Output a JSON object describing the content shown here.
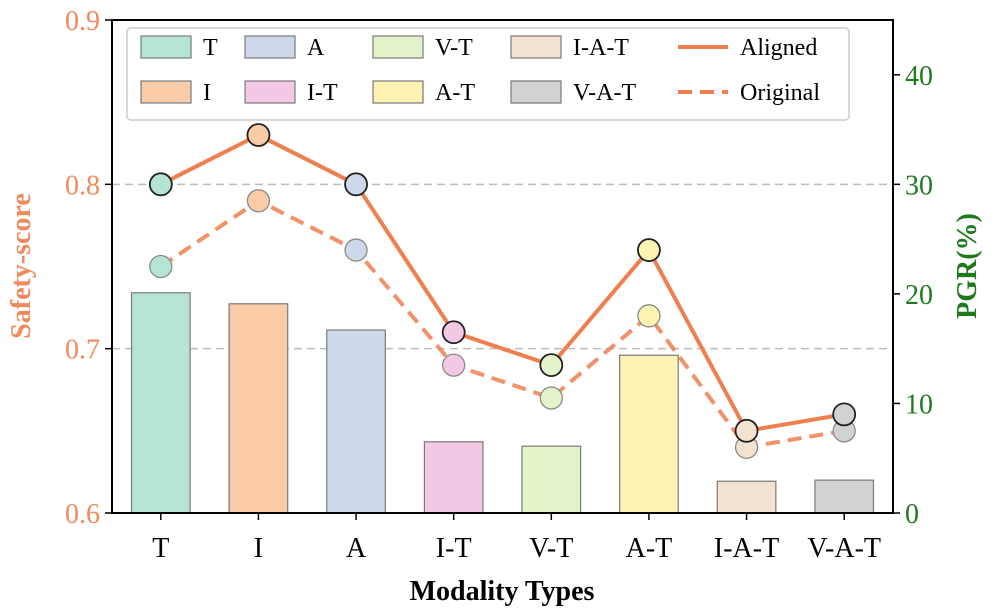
{
  "chart_data": {
    "type": "bar",
    "title": "",
    "xlabel": "Modality Types",
    "ylabel": "Safety-score",
    "y2label": "PGR(%)",
    "categories": [
      "T",
      "I",
      "A",
      "I-T",
      "V-T",
      "A-T",
      "I-A-T",
      "V-A-T"
    ],
    "ylim": [
      0.6,
      0.9
    ],
    "y2lim": [
      0,
      45
    ],
    "yticks": [
      "0.6",
      "0.7",
      "0.8",
      "0.9"
    ],
    "y2ticks": [
      "0",
      "10",
      "20",
      "30",
      "40"
    ],
    "grid": "horizontal dashed at 0.7 and 0.8",
    "legend_position": "top",
    "bar_series": {
      "name": "PGR(%)",
      "axis": "right",
      "values": [
        20.1,
        19.1,
        16.7,
        6.5,
        6.1,
        14.4,
        2.9,
        3.0
      ],
      "colors": [
        "#b5e4d2",
        "#f9cba7",
        "#cdd8ea",
        "#f2c8e4",
        "#e3f4c8",
        "#fef3b2",
        "#f2e2cf",
        "#d2d2d2"
      ]
    },
    "series": [
      {
        "name": "Aligned",
        "style": "solid",
        "axis": "left",
        "values": [
          0.8,
          0.83,
          0.8,
          0.71,
          0.69,
          0.76,
          0.65,
          0.66
        ]
      },
      {
        "name": "Original",
        "style": "dashed",
        "axis": "left",
        "values": [
          0.75,
          0.79,
          0.76,
          0.69,
          0.67,
          0.72,
          0.64,
          0.65
        ]
      }
    ],
    "line_color": "#f07f4f",
    "legend": [
      {
        "label": "T",
        "kind": "patch",
        "color": "#b5e4d2"
      },
      {
        "label": "I",
        "kind": "patch",
        "color": "#f9cba7"
      },
      {
        "label": "A",
        "kind": "patch",
        "color": "#cdd8ea"
      },
      {
        "label": "I-T",
        "kind": "patch",
        "color": "#f2c8e4"
      },
      {
        "label": "V-T",
        "kind": "patch",
        "color": "#e3f4c8"
      },
      {
        "label": "A-T",
        "kind": "patch",
        "color": "#fef3b2"
      },
      {
        "label": "I-A-T",
        "kind": "patch",
        "color": "#f2e2cf"
      },
      {
        "label": "V-A-T",
        "kind": "patch",
        "color": "#d2d2d2"
      },
      {
        "label": "Aligned",
        "kind": "line-solid",
        "color": "#f07f4f"
      },
      {
        "label": "Original",
        "kind": "line-dashed",
        "color": "#f07f4f"
      }
    ]
  }
}
